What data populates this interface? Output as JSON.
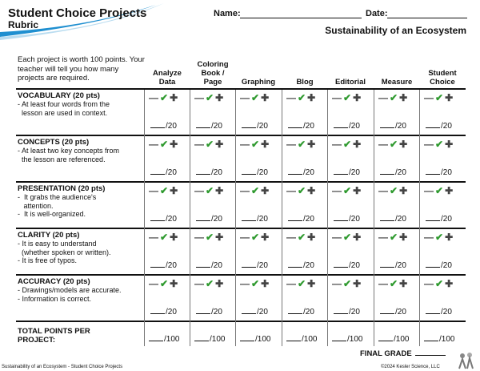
{
  "header": {
    "title": "Student Choice Projects",
    "subtitle": "Rubric",
    "name_label": "Name:",
    "date_label": "Date:",
    "topic": "Sustainability of an Ecosystem"
  },
  "intro": "Each project is worth 100 points. Your teacher will tell you how many projects are required.",
  "columns": [
    {
      "l1": "",
      "l2": "Analyze",
      "l3": "Data"
    },
    {
      "l1": "Coloring",
      "l2": "Book /",
      "l3": "Page"
    },
    {
      "l1": "",
      "l2": "",
      "l3": "Graphing"
    },
    {
      "l1": "",
      "l2": "",
      "l3": "Blog"
    },
    {
      "l1": "",
      "l2": "",
      "l3": "Editorial"
    },
    {
      "l1": "",
      "l2": "",
      "l3": "Measure"
    },
    {
      "l1": "",
      "l2": "Student",
      "l3": "Choice"
    }
  ],
  "rows": [
    {
      "title": "VOCABULARY (20 pts)",
      "bullets": [
        "- At least four words from the",
        "  lesson are used in context."
      ]
    },
    {
      "title": "CONCEPTS (20 pts)",
      "bullets": [
        "- At least two key concepts from",
        "  the lesson are referenced."
      ]
    },
    {
      "title": "PRESENTATION (20 pts)",
      "bullets": [
        "-  It grabs the audience's",
        "   attention.",
        "-  It is well-organized."
      ]
    },
    {
      "title": "CLARITY (20 pts)",
      "bullets": [
        "- It is easy to understand",
        "  (whether spoken or written).",
        "- It is free of typos."
      ]
    },
    {
      "title": "ACCURACY (20 pts)",
      "bullets": [
        "- Drawings/models are accurate.",
        "- Information is correct."
      ]
    }
  ],
  "symbols": {
    "minus": "—",
    "check": "✔",
    "plus": "✚"
  },
  "score_row": "/20",
  "score_total": "/100",
  "total_label_1": "TOTAL POINTS PER",
  "total_label_2": "PROJECT:",
  "final_grade_label": "FINAL GRADE",
  "footer_left": "Sustainability of an Ecosystem - Student Choice Projects",
  "footer_right": "©2024  Kesler Science, LLC",
  "colors": {
    "check": "#2f9a2f",
    "swoosh": "#1f8fd0"
  }
}
